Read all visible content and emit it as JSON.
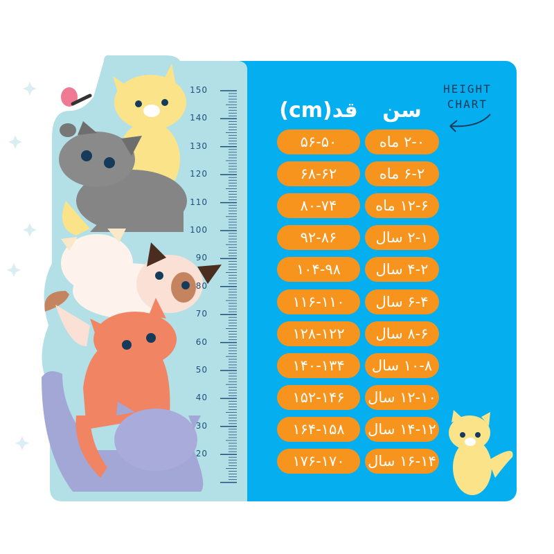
{
  "colors": {
    "panel_blue": "#04aeef",
    "pill_orange": "#f7941d",
    "ruler_panel": "#b3e0e6",
    "ink": "#1f4e79"
  },
  "badge": {
    "line1": "HEIGHT",
    "line2": "CHART",
    "icon": "curved-arrow-icon"
  },
  "headers": {
    "height": "قد(cm)",
    "age": "سن"
  },
  "rows": [
    {
      "height": "۵۶-۵۰",
      "age": "۲-۰ ماه"
    },
    {
      "height": "۶۸-۶۲",
      "age": "۶-۲ ماه"
    },
    {
      "height": "۸۰-۷۴",
      "age": "۱۲-۶ ماه"
    },
    {
      "height": "۹۲-۸۶",
      "age": "۲-۱ سال"
    },
    {
      "height": "۱۰۴-۹۸",
      "age": "۴-۲ سال"
    },
    {
      "height": "۱۱۶-۱۱۰",
      "age": "۶-۴ سال"
    },
    {
      "height": "۱۲۸-۱۲۲",
      "age": "۸-۶ سال"
    },
    {
      "height": "۱۴۰-۱۳۴",
      "age": "۱۰-۸ سال"
    },
    {
      "height": "۱۵۲-۱۴۶",
      "age": "۱۲-۱۰ سال"
    },
    {
      "height": "۱۶۴-۱۵۸",
      "age": "۱۴-۱۲ سال"
    },
    {
      "height": "۱۷۶-۱۷۰",
      "age": "۱۶-۱۴ سال"
    }
  ],
  "ruler": {
    "labels": [
      "150",
      "140",
      "130",
      "120",
      "110",
      "100",
      "90",
      "80",
      "70",
      "60",
      "50",
      "40",
      "30",
      "20"
    ],
    "unit_min": 10,
    "unit_max": 150
  }
}
